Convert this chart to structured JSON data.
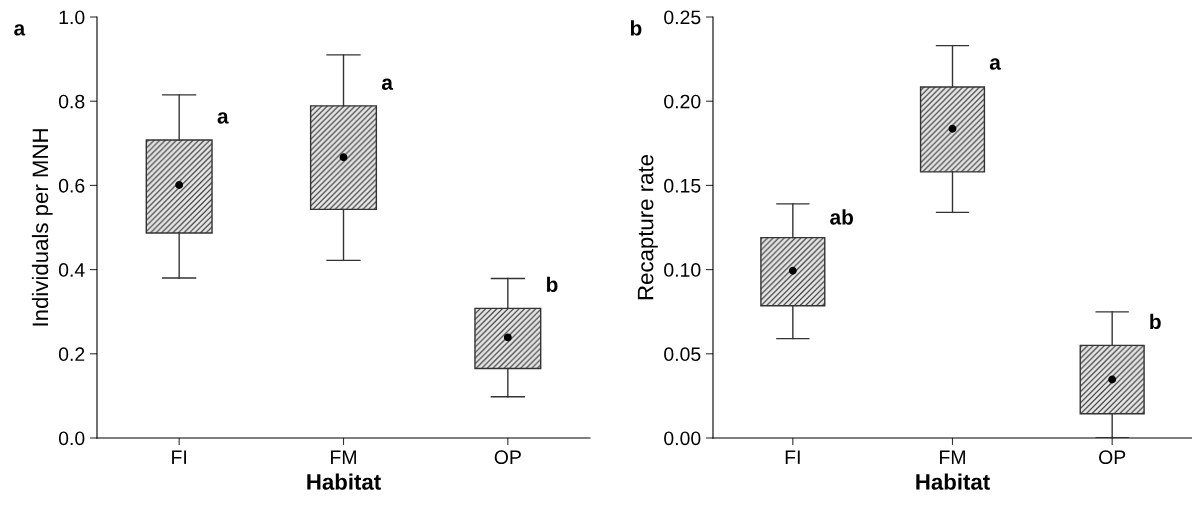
{
  "chart_data": [
    {
      "type": "box",
      "title": "a",
      "xlabel": "Habitat",
      "ylabel": "Individuals per MNH",
      "categories": [
        "FI",
        "FM",
        "OP"
      ],
      "boxes": [
        {
          "low": 0.38,
          "q1": 0.487,
          "median": 0.601,
          "q3": 0.708,
          "high": 0.815
        },
        {
          "low": 0.422,
          "q1": 0.543,
          "median": 0.667,
          "q3": 0.789,
          "high": 0.91
        },
        {
          "low": 0.098,
          "q1": 0.165,
          "median": 0.239,
          "q3": 0.308,
          "high": 0.379
        }
      ],
      "ylim": [
        0,
        1
      ],
      "yticks": [
        {
          "value": 0,
          "label": "0.0"
        },
        {
          "value": 0.2,
          "label": "0.2"
        },
        {
          "value": 0.4,
          "label": "0.4"
        },
        {
          "value": 0.6,
          "label": "0.6"
        },
        {
          "value": 0.8,
          "label": "0.8"
        },
        {
          "value": 1,
          "label": "1.0"
        }
      ],
      "annotations": [
        {
          "text": "a",
          "x": "FI",
          "y": 0.76
        },
        {
          "text": "a",
          "x": "FM",
          "y": 0.84
        },
        {
          "text": "b",
          "x": "OP",
          "y": 0.36
        }
      ]
    },
    {
      "type": "box",
      "title": "b",
      "xlabel": "Habitat",
      "ylabel": "Recapture rate",
      "categories": [
        "FI",
        "FM",
        "OP"
      ],
      "boxes": [
        {
          "low": 0.059,
          "q1": 0.0785,
          "median": 0.0993,
          "q3": 0.119,
          "high": 0.139
        },
        {
          "low": 0.134,
          "q1": 0.158,
          "median": 0.1836,
          "q3": 0.2084,
          "high": 0.233
        },
        {
          "low": 0,
          "q1": 0.0144,
          "median": 0.0347,
          "q3": 0.055,
          "high": 0.0749
        }
      ],
      "ylim": [
        0,
        0.25
      ],
      "yticks": [
        {
          "value": 0,
          "label": "0.00"
        },
        {
          "value": 0.05,
          "label": "0.05"
        },
        {
          "value": 0.1,
          "label": "0.10"
        },
        {
          "value": 0.15,
          "label": "0.15"
        },
        {
          "value": 0.2,
          "label": "0.20"
        },
        {
          "value": 0.25,
          "label": "0.25"
        }
      ],
      "annotations": [
        {
          "text": "ab",
          "x": "FI",
          "y": 0.13
        },
        {
          "text": "a",
          "x": "FM",
          "y": 0.222
        },
        {
          "text": "b",
          "x": "OP",
          "y": 0.068
        }
      ]
    }
  ]
}
